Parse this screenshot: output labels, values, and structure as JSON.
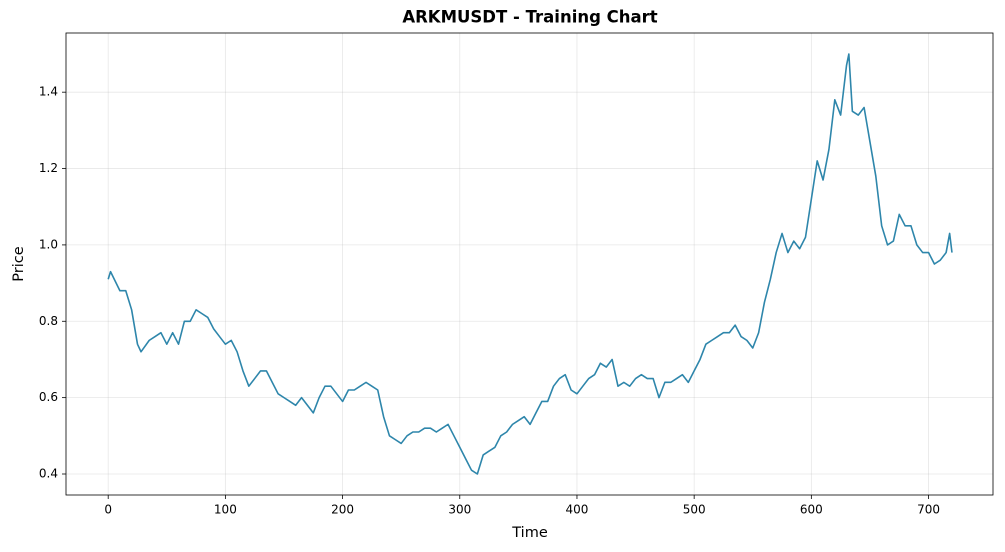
{
  "chart_data": {
    "type": "line",
    "title": "ARKMUSDT - Training Chart",
    "x_label": "Time",
    "y_label": "Price",
    "x": [
      0,
      2,
      10,
      15,
      20,
      25,
      28,
      35,
      40,
      45,
      50,
      55,
      60,
      65,
      70,
      75,
      80,
      85,
      90,
      95,
      100,
      105,
      110,
      115,
      120,
      125,
      130,
      135,
      140,
      145,
      150,
      155,
      160,
      165,
      170,
      175,
      180,
      185,
      190,
      195,
      200,
      205,
      210,
      215,
      220,
      225,
      230,
      235,
      240,
      245,
      250,
      255,
      260,
      265,
      270,
      275,
      280,
      285,
      290,
      295,
      300,
      305,
      310,
      315,
      320,
      325,
      330,
      335,
      340,
      345,
      350,
      355,
      360,
      365,
      370,
      375,
      380,
      385,
      390,
      395,
      400,
      405,
      410,
      415,
      420,
      425,
      430,
      435,
      440,
      445,
      450,
      455,
      460,
      465,
      470,
      475,
      480,
      485,
      490,
      495,
      500,
      505,
      510,
      515,
      520,
      525,
      530,
      535,
      540,
      545,
      550,
      555,
      560,
      565,
      570,
      575,
      580,
      585,
      590,
      595,
      600,
      605,
      610,
      615,
      620,
      625,
      630,
      632,
      635,
      640,
      645,
      650,
      655,
      660,
      665,
      670,
      675,
      680,
      685,
      690,
      695,
      700,
      705,
      710,
      715,
      718,
      720
    ],
    "series": [
      {
        "name": "Price",
        "color": "#2e86ab",
        "values": [
          0.91,
          0.93,
          0.88,
          0.88,
          0.83,
          0.74,
          0.72,
          0.75,
          0.76,
          0.77,
          0.74,
          0.77,
          0.74,
          0.8,
          0.8,
          0.83,
          0.82,
          0.81,
          0.78,
          0.76,
          0.74,
          0.75,
          0.72,
          0.67,
          0.63,
          0.65,
          0.67,
          0.67,
          0.64,
          0.61,
          0.6,
          0.59,
          0.58,
          0.6,
          0.58,
          0.56,
          0.6,
          0.63,
          0.63,
          0.61,
          0.59,
          0.62,
          0.62,
          0.63,
          0.64,
          0.63,
          0.62,
          0.55,
          0.5,
          0.49,
          0.48,
          0.5,
          0.51,
          0.51,
          0.52,
          0.52,
          0.51,
          0.52,
          0.53,
          0.5,
          0.47,
          0.44,
          0.41,
          0.4,
          0.45,
          0.46,
          0.47,
          0.5,
          0.51,
          0.53,
          0.54,
          0.55,
          0.53,
          0.56,
          0.59,
          0.59,
          0.63,
          0.65,
          0.66,
          0.62,
          0.61,
          0.63,
          0.65,
          0.66,
          0.69,
          0.68,
          0.7,
          0.63,
          0.64,
          0.63,
          0.65,
          0.66,
          0.65,
          0.65,
          0.6,
          0.64,
          0.64,
          0.65,
          0.66,
          0.64,
          0.67,
          0.7,
          0.74,
          0.75,
          0.76,
          0.77,
          0.77,
          0.79,
          0.76,
          0.75,
          0.73,
          0.77,
          0.85,
          0.91,
          0.98,
          1.03,
          0.98,
          1.01,
          0.99,
          1.02,
          1.12,
          1.22,
          1.17,
          1.25,
          1.38,
          1.34,
          1.47,
          1.5,
          1.35,
          1.34,
          1.36,
          1.27,
          1.18,
          1.05,
          1.0,
          1.01,
          1.08,
          1.05,
          1.05,
          1.0,
          0.98,
          0.98,
          0.95,
          0.96,
          0.98,
          1.03,
          0.98
        ]
      }
    ],
    "xlim": [
      -36,
      755
    ],
    "ylim": [
      0.345,
      1.555
    ],
    "xticks": [
      0,
      100,
      200,
      300,
      400,
      500,
      600,
      700
    ],
    "yticks": [
      0.4,
      0.6,
      0.8,
      {
        "value": 1,
        "label": "1.0"
      },
      1.2,
      1.4
    ],
    "grid": true
  }
}
